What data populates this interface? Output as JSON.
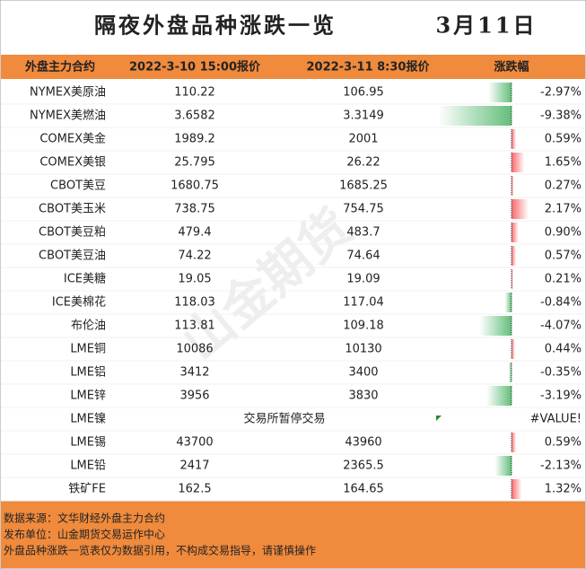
{
  "header": {
    "title": "隔夜外盘品种涨跌一览",
    "date": "3月11日"
  },
  "table": {
    "columns": [
      "外盘主力合约",
      "2022-3-10 15:00报价",
      "2022-3-11 8:30报价",
      "涨跌幅"
    ],
    "rows": [
      {
        "name": "NYMEX美原油",
        "prev": "110.22",
        "curr": "106.95",
        "change": -2.97,
        "change_label": "-2.97%"
      },
      {
        "name": "NYMEX美燃油",
        "prev": "3.6582",
        "curr": "3.3149",
        "change": -9.38,
        "change_label": "-9.38%"
      },
      {
        "name": "COMEX美金",
        "prev": "1989.2",
        "curr": "2001",
        "change": 0.59,
        "change_label": "0.59%"
      },
      {
        "name": "COMEX美银",
        "prev": "25.795",
        "curr": "26.22",
        "change": 1.65,
        "change_label": "1.65%"
      },
      {
        "name": "CBOT美豆",
        "prev": "1680.75",
        "curr": "1685.25",
        "change": 0.27,
        "change_label": "0.27%"
      },
      {
        "name": "CBOT美玉米",
        "prev": "738.75",
        "curr": "754.75",
        "change": 2.17,
        "change_label": "2.17%"
      },
      {
        "name": "CBOT美豆粕",
        "prev": "479.4",
        "curr": "483.7",
        "change": 0.9,
        "change_label": "0.90%"
      },
      {
        "name": "CBOT美豆油",
        "prev": "74.22",
        "curr": "74.64",
        "change": 0.57,
        "change_label": "0.57%"
      },
      {
        "name": "ICE美糖",
        "prev": "19.05",
        "curr": "19.09",
        "change": 0.21,
        "change_label": "0.21%"
      },
      {
        "name": "ICE美棉花",
        "prev": "118.03",
        "curr": "117.04",
        "change": -0.84,
        "change_label": "-0.84%"
      },
      {
        "name": "布伦油",
        "prev": "113.81",
        "curr": "109.18",
        "change": -4.07,
        "change_label": "-4.07%"
      },
      {
        "name": "LME铜",
        "prev": "10086",
        "curr": "10130",
        "change": 0.44,
        "change_label": "0.44%"
      },
      {
        "name": "LME铝",
        "prev": "3412",
        "curr": "3400",
        "change": -0.35,
        "change_label": "-0.35%"
      },
      {
        "name": "LME锌",
        "prev": "3956",
        "curr": "3830",
        "change": -3.19,
        "change_label": "-3.19%"
      },
      {
        "name": "LME镍",
        "note": "交易所暂停交易",
        "change_label": "#VALUE!"
      },
      {
        "name": "LME锡",
        "prev": "43700",
        "curr": "43960",
        "change": 0.59,
        "change_label": "0.59%"
      },
      {
        "name": "LME铅",
        "prev": "2417",
        "curr": "2365.5",
        "change": -2.13,
        "change_label": "-2.13%"
      },
      {
        "name": "铁矿FE",
        "prev": "162.5",
        "curr": "164.65",
        "change": 1.32,
        "change_label": "1.32%"
      }
    ]
  },
  "footer": {
    "lines": [
      "数据来源：文华财经外盘主力合约",
      "发布单位：山金期货交易运作中心",
      "外盘品种涨跌一览表仅为数据引用，不构成交易指导，请谨慎操作"
    ]
  }
}
